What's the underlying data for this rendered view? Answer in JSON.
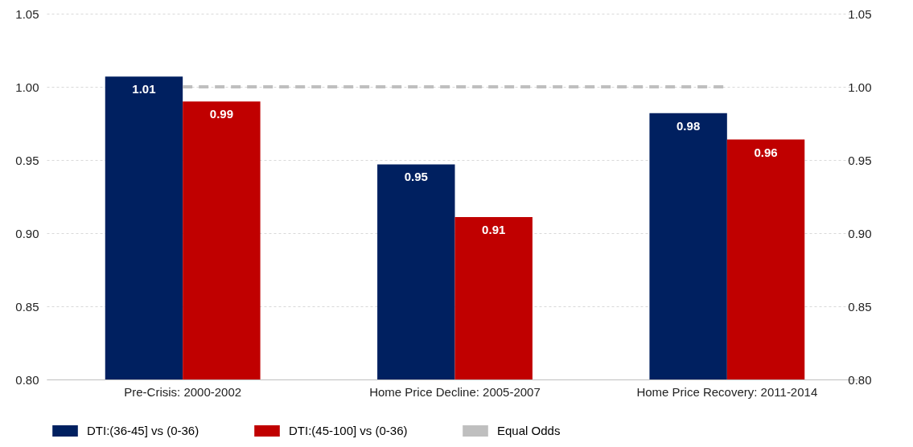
{
  "chart_data": {
    "type": "bar",
    "categories": [
      "Pre-Crisis: 2000-2002",
      "Home Price Decline: 2005-2007",
      "Home Price Recovery: 2011-2014"
    ],
    "series": [
      {
        "name": "DTI:(36-45] vs (0-36)",
        "color": "#002060",
        "values": [
          1.007,
          0.947,
          0.982
        ],
        "value_labels": [
          "1.01",
          "0.95",
          "0.98"
        ]
      },
      {
        "name": "DTI:(45-100] vs (0-36)",
        "color": "#c00000",
        "values": [
          0.99,
          0.911,
          0.964
        ],
        "value_labels": [
          "0.99",
          "0.91",
          "0.96"
        ]
      },
      {
        "name": "Equal Odds",
        "type": "line",
        "color": "#bfbfbf",
        "line_style": "dashed",
        "values": [
          1.0,
          1.0,
          1.0
        ]
      }
    ],
    "ylim": [
      0.8,
      1.05
    ],
    "yticks": [
      {
        "value": 0.8,
        "label": "0.80"
      },
      {
        "value": 0.85,
        "label": "0.85"
      },
      {
        "value": 0.9,
        "label": "0.90"
      },
      {
        "value": 0.95,
        "label": "0.95"
      },
      {
        "value": 1.0,
        "label": "1.00"
      },
      {
        "value": 1.05,
        "label": "1.05"
      }
    ],
    "y2lim": [
      0.8,
      1.05
    ],
    "y2ticks": [
      {
        "value": 0.8,
        "label": "0.80"
      },
      {
        "value": 0.85,
        "label": "0.85"
      },
      {
        "value": 0.9,
        "label": "0.90"
      },
      {
        "value": 0.95,
        "label": "0.95"
      },
      {
        "value": 1.0,
        "label": "1.00"
      },
      {
        "value": 1.05,
        "label": "1.05"
      }
    ],
    "grid": "y",
    "legend": "bottom"
  }
}
